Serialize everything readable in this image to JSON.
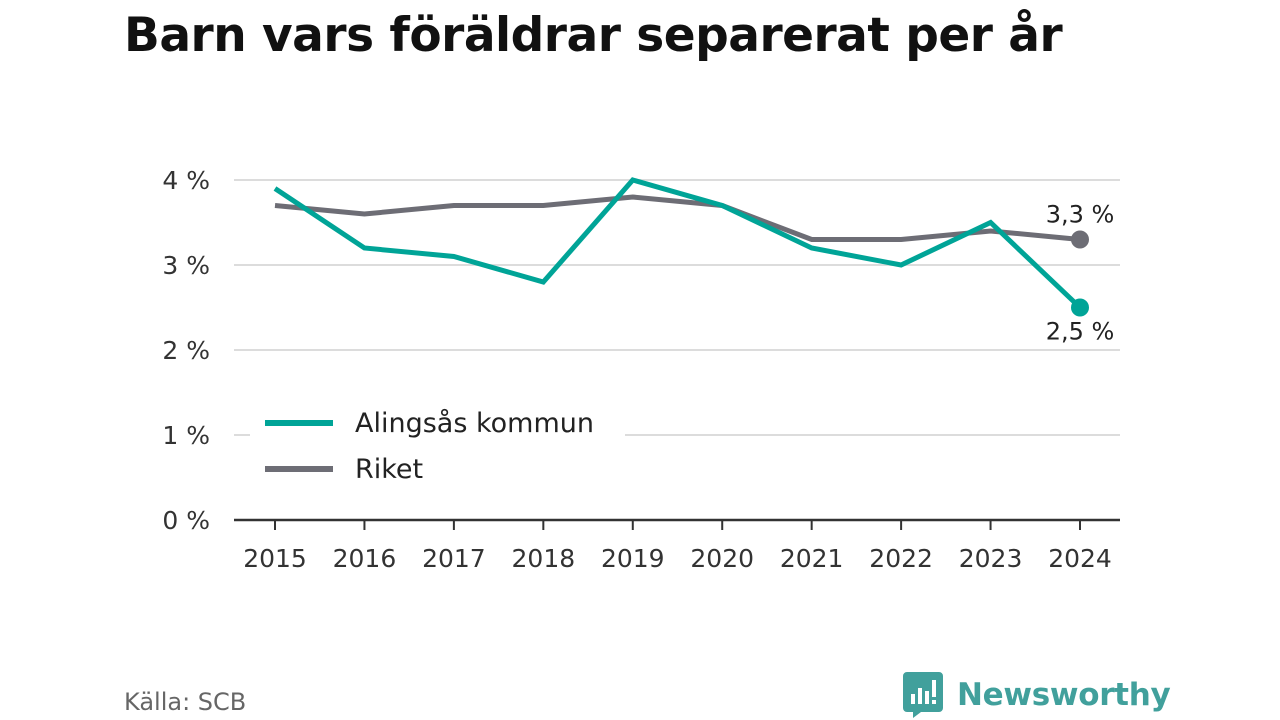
{
  "title": "Barn vars föräldrar separerat per år",
  "source": "Källa: SCB",
  "brand": {
    "name": "Newsworthy",
    "icon": "newsworthy-logo-icon",
    "color": "#41a09c"
  },
  "chart_data": {
    "type": "line",
    "title": "Barn vars föräldrar separerat per år",
    "x": [
      2015,
      2016,
      2017,
      2018,
      2019,
      2020,
      2021,
      2022,
      2023,
      2024
    ],
    "xtick_labels": [
      "2015",
      "2016",
      "2017",
      "2018",
      "2019",
      "2020",
      "2021",
      "2022",
      "2023",
      "2024"
    ],
    "ylim": [
      0,
      4
    ],
    "yticks": [
      0,
      1,
      2,
      3,
      4
    ],
    "ytick_labels": [
      "0 %",
      "1 %",
      "2 %",
      "3 %",
      "4 %"
    ],
    "grid": true,
    "legend_position": "bottom-left",
    "series": [
      {
        "name": "Alingsås kommun",
        "color": "#00a497",
        "values": [
          3.9,
          3.2,
          3.1,
          2.8,
          4.0,
          3.7,
          3.2,
          3.0,
          3.5,
          2.5
        ],
        "end_label": "2,5 %"
      },
      {
        "name": "Riket",
        "color": "#6d6d75",
        "values": [
          3.7,
          3.6,
          3.7,
          3.7,
          3.8,
          3.7,
          3.3,
          3.3,
          3.4,
          3.3
        ],
        "end_label": "3,3 %"
      }
    ]
  }
}
